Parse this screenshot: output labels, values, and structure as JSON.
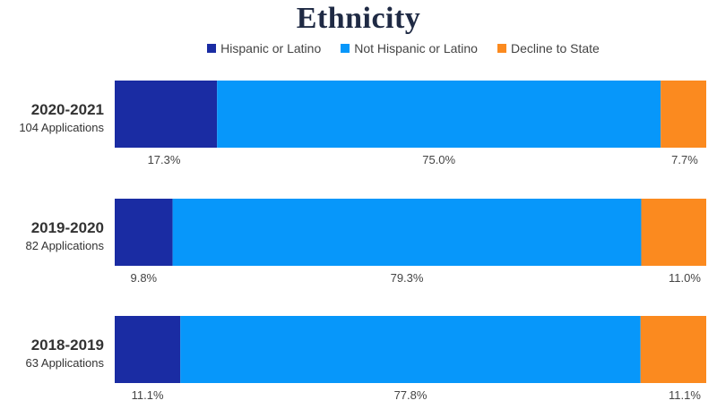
{
  "chart_data": {
    "type": "bar",
    "orientation": "horizontal",
    "stacked": true,
    "percent_stacked": true,
    "title": "Ethnicity",
    "legend_position": "top",
    "series": [
      {
        "name": "Hispanic or Latino",
        "color": "#1a2ca3"
      },
      {
        "name": "Not Hispanic or Latino",
        "color": "#0797fa"
      },
      {
        "name": "Decline to State",
        "color": "#fb8a1f"
      }
    ],
    "rows": [
      {
        "year": "2020-2021",
        "count": "104 Applications",
        "values": [
          17.3,
          75.0,
          7.7
        ],
        "labels": [
          "17.3%",
          "75.0%",
          "7.7%"
        ]
      },
      {
        "year": "2019-2020",
        "count": "82 Applications",
        "values": [
          9.8,
          79.3,
          11.0
        ],
        "labels": [
          "9.8%",
          "79.3%",
          "11.0%"
        ]
      },
      {
        "year": "2018-2019",
        "count": "63 Applications",
        "values": [
          11.1,
          77.8,
          11.1
        ],
        "labels": [
          "11.1%",
          "77.8%",
          "11.1%"
        ]
      }
    ]
  }
}
